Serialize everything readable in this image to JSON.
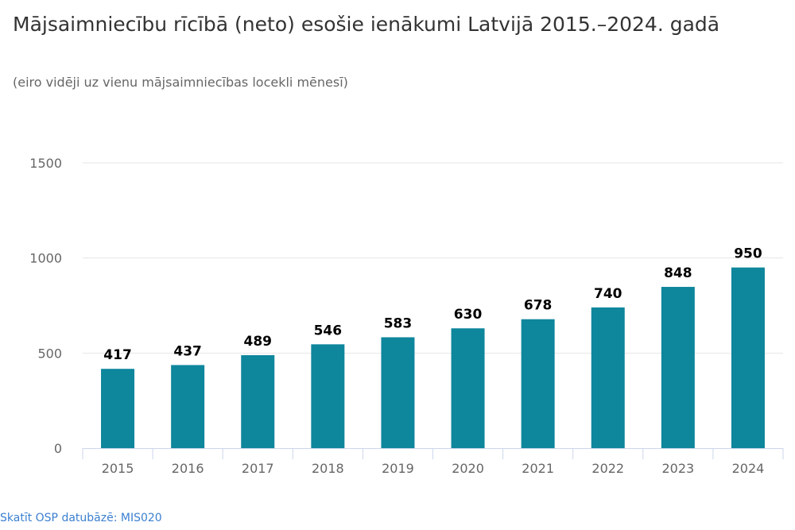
{
  "chart_data": {
    "type": "bar",
    "title": "Mājsaimniecību rīcībā (neto) esošie ienākumi Latvijā 2015.–2024. gadā",
    "subtitle": "(eiro vidēji uz vienu mājsaimniecības locekli mēnesī)",
    "xlabel": "",
    "ylabel": "",
    "categories": [
      "2015",
      "2016",
      "2017",
      "2018",
      "2019",
      "2020",
      "2021",
      "2022",
      "2023",
      "2024"
    ],
    "values": [
      417,
      437,
      489,
      546,
      583,
      630,
      678,
      740,
      848,
      950
    ],
    "ylim": [
      0,
      1500
    ],
    "yticks": [
      0,
      500,
      1000,
      1500
    ],
    "grid": true,
    "legend": "none",
    "color": "#0e869c"
  },
  "footer": {
    "link": "Skatīt OSP datubāzē: MIS020"
  }
}
